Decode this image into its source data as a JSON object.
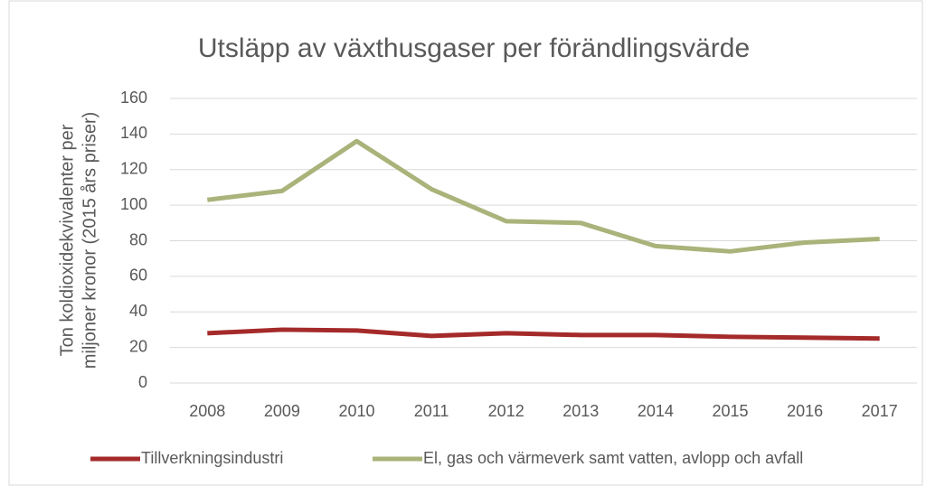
{
  "chart_data": {
    "type": "line",
    "title": "Utsläpp av växthusgaser per förändlingsvärde",
    "ylabel": [
      "Ton koldioxidekvivalenter per",
      "miljoner kronor (2015 års priser)"
    ],
    "categories": [
      "2008",
      "2009",
      "2010",
      "2011",
      "2012",
      "2013",
      "2014",
      "2015",
      "2016",
      "2017"
    ],
    "series": [
      {
        "name": "Tillverkningsindustri",
        "color": "#a52a2a",
        "values": [
          28,
          30,
          29.5,
          26.5,
          28,
          27,
          27,
          26,
          25.5,
          25
        ]
      },
      {
        "name": "El, gas och värmeverk samt vatten, avlopp och avfall",
        "color": "#a9b37a",
        "values": [
          103,
          108,
          136,
          109,
          91,
          90,
          77,
          74,
          79,
          81
        ]
      }
    ],
    "ylim": [
      0,
      160
    ],
    "yticks": [
      0,
      20,
      40,
      60,
      80,
      100,
      120,
      140,
      160
    ],
    "grid": true,
    "legend": "bottom"
  }
}
